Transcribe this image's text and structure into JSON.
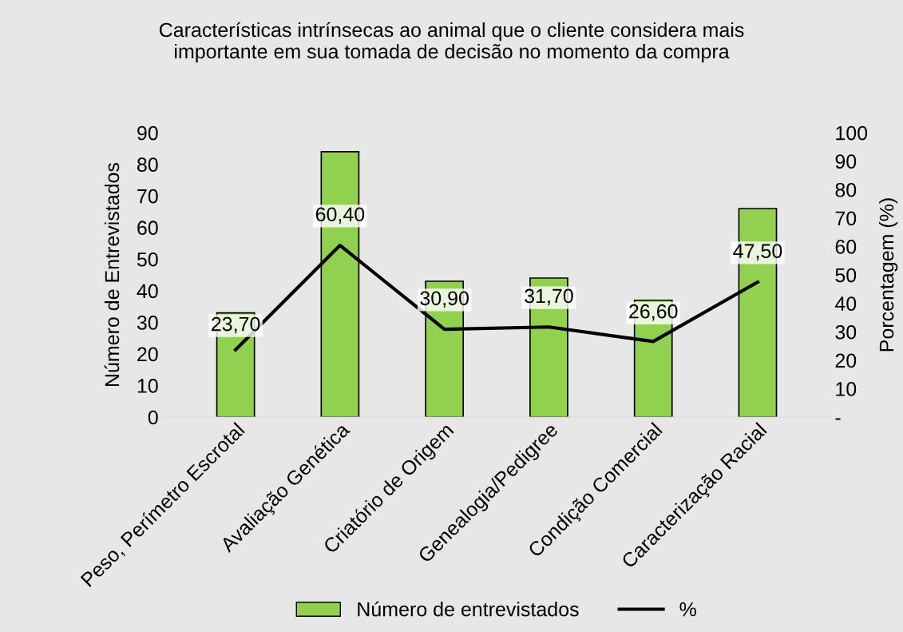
{
  "chart_data": {
    "type": "bar",
    "title": "Características intrínsecas ao animal que o cliente considera mais\nimportante em sua tomada de decisão no momento da compra",
    "ylabel": "Número de Entrevistados",
    "y2label": "Porcentagem (%)",
    "categories": [
      "Peso, Perímetro Escrotal",
      "Avaliação Genética",
      "Criatório de Origem",
      "Genealogia/Pedigree",
      "Condição Comercial",
      "Caracterização Racial"
    ],
    "series": [
      {
        "name": "Número de entrevistados",
        "color": "#92d050",
        "values": [
          33,
          84,
          43,
          44,
          37,
          66
        ]
      },
      {
        "name": "%",
        "type": "line",
        "axis": "y2",
        "color": "#000000",
        "values": [
          23.7,
          60.4,
          30.9,
          31.7,
          26.6,
          47.5
        ],
        "value_labels": [
          "23,70",
          "60,40",
          "30,90",
          "31,70",
          "26,60",
          "47,50"
        ]
      }
    ],
    "ylim": [
      0,
      90
    ],
    "yticks": [
      0,
      10,
      20,
      30,
      40,
      50,
      60,
      70,
      80,
      90
    ],
    "y2lim": [
      0,
      100
    ],
    "y2ticks": [
      {
        "value": 0,
        "label": "-"
      },
      10,
      20,
      30,
      40,
      50,
      60,
      70,
      80,
      90,
      100
    ],
    "grid": false,
    "legend": "bottom",
    "marker": "none",
    "line_style": "solid"
  }
}
